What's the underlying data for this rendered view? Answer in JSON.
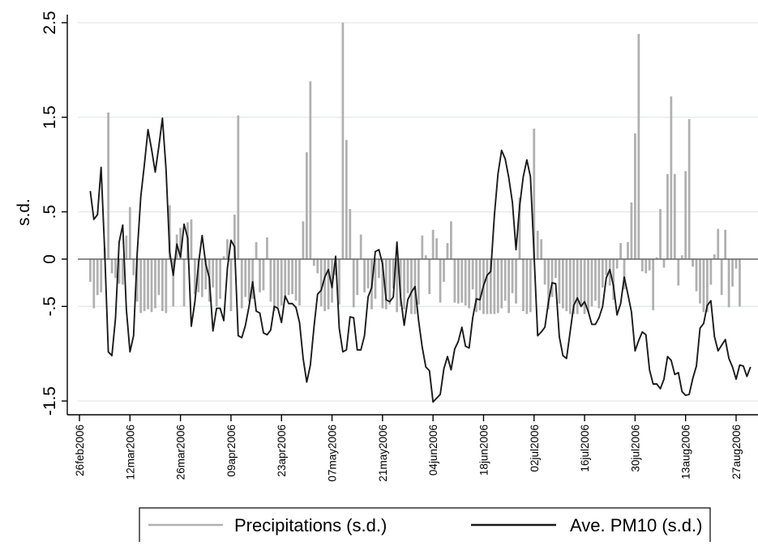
{
  "colors": {
    "precip": "#b0b0b0",
    "pm10": "#1a1a1a",
    "axis": "#000000",
    "grid": "#e3e6ea",
    "zero_line": "#666666"
  },
  "chart_data": {
    "type": "bar+line",
    "title": "",
    "xlabel": "",
    "ylabel": "s.d.",
    "ylim": [
      -1.6,
      2.5
    ],
    "y_ticks": [
      {
        "value": 2.5,
        "label": "2.5"
      },
      {
        "value": 1.5,
        "label": "1.5"
      },
      {
        "value": 0.5,
        "label": ".5"
      },
      {
        "value": 0,
        "label": "0"
      },
      {
        "value": -0.5,
        "label": "-.5"
      },
      {
        "value": -1.5,
        "label": "-1.5"
      }
    ],
    "x_ticks": [
      {
        "date": "2006-02-26",
        "label": "26feb2006"
      },
      {
        "date": "2006-03-12",
        "label": "12mar2006"
      },
      {
        "date": "2006-03-26",
        "label": "26mar2006"
      },
      {
        "date": "2006-04-09",
        "label": "09apr2006"
      },
      {
        "date": "2006-04-23",
        "label": "23apr2006"
      },
      {
        "date": "2006-05-07",
        "label": "07may2006"
      },
      {
        "date": "2006-05-21",
        "label": "21may2006"
      },
      {
        "date": "2006-06-04",
        "label": "04jun2006"
      },
      {
        "date": "2006-06-18",
        "label": "18jun2006"
      },
      {
        "date": "2006-07-02",
        "label": "02jul2006"
      },
      {
        "date": "2006-07-16",
        "label": "16jul2006"
      },
      {
        "date": "2006-07-30",
        "label": "30jul2006"
      },
      {
        "date": "2006-08-13",
        "label": "13aug2006"
      },
      {
        "date": "2006-08-27",
        "label": "27aug2006"
      }
    ],
    "legend_position": "bottom",
    "grid": true,
    "x_start": "2006-02-29",
    "x_end": "2006-08-31",
    "series": [
      {
        "name": "Precipitations (s.d.)",
        "type": "bar",
        "values": [
          -0.24,
          -0.52,
          -0.38,
          -0.35,
          0.12,
          1.55,
          -0.15,
          -0.2,
          -0.26,
          -0.27,
          0.25,
          0.55,
          -0.17,
          -0.45,
          -0.57,
          -0.55,
          -0.53,
          -0.56,
          -0.52,
          -0.38,
          -0.55,
          -0.57,
          0.57,
          -0.5,
          0.26,
          0.33,
          -0.5,
          0.39,
          0.42,
          -0.37,
          -0.35,
          -0.4,
          -0.32,
          -0.45,
          -0.3,
          -0.5,
          -0.42,
          0.03,
          0.21,
          -0.55,
          0.47,
          1.52,
          -0.52,
          -0.4,
          -0.45,
          -0.42,
          0.18,
          -0.35,
          -0.33,
          0.23,
          -0.45,
          -0.55,
          -0.51,
          -0.49,
          -0.43,
          -0.38,
          -0.37,
          -0.44,
          -0.49,
          0.4,
          1.13,
          1.88,
          -0.07,
          -0.15,
          -0.5,
          -0.55,
          -0.53,
          -0.46,
          -0.17,
          -0.48,
          2.5,
          1.26,
          0.53,
          -0.51,
          -0.38,
          0.26,
          -0.35,
          -0.31,
          -0.53,
          -0.42,
          -0.2,
          -0.52,
          -0.53,
          -0.48,
          -0.31,
          -0.56,
          -0.5,
          -0.53,
          -0.36,
          -0.58,
          -0.58,
          -0.48,
          0.25,
          0.04,
          -0.37,
          0.31,
          0.22,
          -0.46,
          -0.24,
          0.17,
          0.4,
          -0.46,
          -0.47,
          -0.46,
          -0.49,
          -0.52,
          -0.32,
          -0.56,
          -0.54,
          -0.58,
          -0.58,
          -0.58,
          -0.58,
          -0.57,
          -0.52,
          -0.44,
          -0.57,
          -0.36,
          -0.47,
          0.65,
          -0.55,
          -0.58,
          -0.56,
          1.38,
          0.3,
          0.21,
          -0.27,
          -0.53,
          -0.4,
          -0.2,
          -0.47,
          -0.52,
          -0.55,
          -0.58,
          -0.58,
          -0.58,
          -0.49,
          -0.58,
          -0.56,
          -0.5,
          -0.44,
          -0.52,
          -0.3,
          -0.17,
          -0.28,
          -0.43,
          -0.1,
          0.17,
          -0.32,
          0.18,
          0.6,
          1.33,
          2.38,
          -0.13,
          -0.15,
          -0.12,
          -0.54,
          0.02,
          0.53,
          -0.09,
          0.9,
          1.72,
          0.9,
          -0.28,
          0.04,
          0.93,
          1.48,
          -0.08,
          -0.34,
          -0.47,
          -0.56,
          -0.56,
          -0.27,
          0.05,
          0.32,
          -0.38,
          0.31,
          -0.51,
          -0.29,
          -0.1,
          -0.5
        ]
      },
      {
        "name": "Ave. PM10 (s.d.)",
        "type": "line",
        "values": [
          0.72,
          0.42,
          0.47,
          0.97,
          0.08,
          -0.98,
          -1.02,
          -0.62,
          0.18,
          0.36,
          -0.53,
          -0.98,
          -0.81,
          0.06,
          0.66,
          1.0,
          1.37,
          1.16,
          0.92,
          1.19,
          1.49,
          0.95,
          0.08,
          -0.17,
          0.16,
          0.02,
          0.37,
          0.22,
          -0.71,
          -0.45,
          -0.05,
          0.25,
          -0.05,
          -0.2,
          -0.76,
          -0.52,
          -0.52,
          -0.65,
          -0.1,
          0.2,
          0.13,
          -0.81,
          -0.83,
          -0.7,
          -0.5,
          -0.24,
          -0.55,
          -0.57,
          -0.78,
          -0.8,
          -0.75,
          -0.5,
          -0.52,
          -0.67,
          -0.39,
          -0.47,
          -0.47,
          -0.51,
          -0.67,
          -1.05,
          -1.3,
          -1.12,
          -0.72,
          -0.37,
          -0.33,
          -0.19,
          -0.11,
          -0.3,
          0.03,
          -0.73,
          -0.98,
          -0.96,
          -0.61,
          -0.62,
          -0.96,
          -0.96,
          -0.81,
          -0.4,
          -0.3,
          0.08,
          0.1,
          -0.05,
          -0.43,
          -0.45,
          -0.4,
          0.18,
          -0.4,
          -0.7,
          -0.43,
          -0.35,
          -0.29,
          -0.65,
          -0.93,
          -1.14,
          -1.18,
          -1.51,
          -1.47,
          -1.43,
          -1.16,
          -1.03,
          -1.17,
          -0.95,
          -0.87,
          -0.72,
          -0.92,
          -0.94,
          -0.62,
          -0.42,
          -0.43,
          -0.28,
          -0.17,
          -0.13,
          0.46,
          0.9,
          1.15,
          1.06,
          0.86,
          0.6,
          0.1,
          0.56,
          0.87,
          1.05,
          0.87,
          0.05,
          -0.81,
          -0.77,
          -0.72,
          -0.45,
          -0.25,
          -0.26,
          -0.82,
          -1.02,
          -1.05,
          -0.77,
          -0.49,
          -0.41,
          -0.5,
          -0.45,
          -0.55,
          -0.69,
          -0.69,
          -0.62,
          -0.5,
          -0.2,
          -0.11,
          -0.28,
          -0.59,
          -0.47,
          -0.19,
          -0.37,
          -0.56,
          -0.97,
          -0.86,
          -0.77,
          -0.8,
          -1.17,
          -1.32,
          -1.32,
          -1.37,
          -1.27,
          -1.03,
          -1.07,
          -1.22,
          -1.2,
          -1.4,
          -1.44,
          -1.43,
          -1.26,
          -1.13,
          -0.73,
          -0.68,
          -0.49,
          -0.44,
          -0.82,
          -0.97,
          -0.91,
          -0.85,
          -1.05,
          -1.14,
          -1.27,
          -1.12,
          -1.13,
          -1.24,
          -1.14
        ]
      }
    ]
  }
}
